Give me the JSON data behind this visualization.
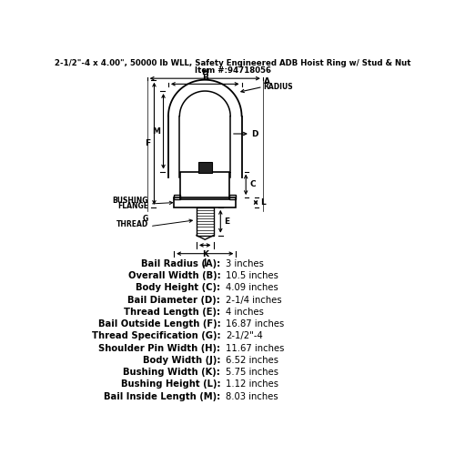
{
  "title": "2-1/2\"-4 x 4.00\", 50000 lb WLL, Safety Engineered ADB Hoist Ring w/ Stud & Nut",
  "item": "Item #:94718056",
  "specs": [
    [
      "Bail Radius (A):",
      "3 inches"
    ],
    [
      "Overall Width (B):",
      "10.5 inches"
    ],
    [
      "Body Height (C):",
      "4.09 inches"
    ],
    [
      "Bail Diameter (D):",
      "2-1/4 inches"
    ],
    [
      "Thread Length (E):",
      "4 inches"
    ],
    [
      "Bail Outside Length (F):",
      "16.87 inches"
    ],
    [
      "Thread Specification (G):",
      "2-1/2\"-4"
    ],
    [
      "Shoulder Pin Width (H):",
      "11.67 inches"
    ],
    [
      "Body Width (J):",
      "6.52 inches"
    ],
    [
      "Bushing Width (K):",
      "5.75 inches"
    ],
    [
      "Bushing Height (L):",
      "1.12 inches"
    ],
    [
      "Bail Inside Length (M):",
      "8.03 inches"
    ]
  ],
  "bg_color": "#ffffff",
  "line_color": "#000000",
  "text_color": "#000000"
}
